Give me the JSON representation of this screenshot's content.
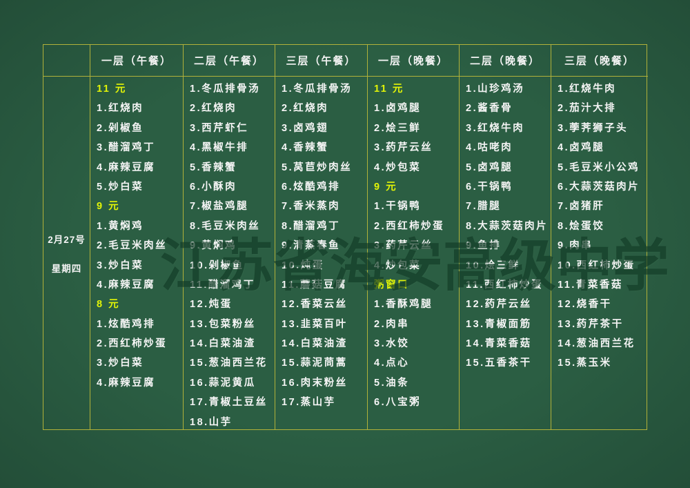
{
  "watermark": "江苏省海安高级中学",
  "date": {
    "line1": "2月27号",
    "line2": "星期四"
  },
  "colors": {
    "background": "#2b5e43",
    "border": "#b2b23a",
    "item_text": "#f5f5f5",
    "highlight_text": "#e2f407",
    "watermark_text": "#0d3622"
  },
  "columns": [
    {
      "header": "一层（午餐）",
      "items": [
        {
          "text": "11 元",
          "highlight": true
        },
        {
          "text": "1.红烧肉"
        },
        {
          "text": "2.剁椒鱼"
        },
        {
          "text": "3.醋溜鸡丁"
        },
        {
          "text": "4.麻辣豆腐"
        },
        {
          "text": "5.炒白菜"
        },
        {
          "text": "9 元",
          "highlight": true
        },
        {
          "text": "1.黄焖鸡"
        },
        {
          "text": "2.毛豆米肉丝"
        },
        {
          "text": "3.炒白菜"
        },
        {
          "text": "4.麻辣豆腐"
        },
        {
          "text": "8 元",
          "highlight": true
        },
        {
          "text": "1.炫酷鸡排"
        },
        {
          "text": "2.西红柿炒蛋"
        },
        {
          "text": "3.炒白菜"
        },
        {
          "text": "4.麻辣豆腐"
        }
      ]
    },
    {
      "header": "二层（午餐）",
      "items": [
        {
          "text": "1.冬瓜排骨汤"
        },
        {
          "text": "2.红烧肉"
        },
        {
          "text": "3.西芹虾仁"
        },
        {
          "text": "4.黑椒牛排"
        },
        {
          "text": "5.香辣蟹"
        },
        {
          "text": "6.小酥肉"
        },
        {
          "text": "7.椒盐鸡腿"
        },
        {
          "text": "8.毛豆米肉丝"
        },
        {
          "text": "9.黄焖鸡"
        },
        {
          "text": "10.剁椒鱼"
        },
        {
          "text": "11.醋溜鸡丁"
        },
        {
          "text": "12.炖蛋"
        },
        {
          "text": "13.包菜粉丝"
        },
        {
          "text": "14.白菜油渣"
        },
        {
          "text": "15.葱油西兰花"
        },
        {
          "text": "16.蒜泥黄瓜"
        },
        {
          "text": "17.青椒土豆丝"
        },
        {
          "text": "18.山芋"
        }
      ]
    },
    {
      "header": "三层（午餐）",
      "items": [
        {
          "text": "1.冬瓜排骨汤"
        },
        {
          "text": "2.红烧肉"
        },
        {
          "text": "3.卤鸡翅"
        },
        {
          "text": "4.香辣蟹"
        },
        {
          "text": "5.莴苣炒肉丝"
        },
        {
          "text": "6.炫酷鸡排"
        },
        {
          "text": "7.香米蒸肉"
        },
        {
          "text": "8.醋溜鸡丁"
        },
        {
          "text": "9.清蒸春鱼"
        },
        {
          "text": "10.炖蛋"
        },
        {
          "text": "11.蘑菇豆腐"
        },
        {
          "text": "12.香菜云丝"
        },
        {
          "text": "13.韭菜百叶"
        },
        {
          "text": "14.白菜油渣"
        },
        {
          "text": "15.蒜泥茼蒿"
        },
        {
          "text": "16.肉末粉丝"
        },
        {
          "text": "17.蒸山芋"
        }
      ]
    },
    {
      "header": "一层（晚餐）",
      "items": [
        {
          "text": "11 元",
          "highlight": true
        },
        {
          "text": "1.卤鸡腿"
        },
        {
          "text": "2.烩三鲜"
        },
        {
          "text": "3.药芹云丝"
        },
        {
          "text": "4.炒包菜"
        },
        {
          "text": "9 元",
          "highlight": true
        },
        {
          "text": "1.干锅鸭"
        },
        {
          "text": "2.西红柿炒蛋"
        },
        {
          "text": "3.药芹云丝"
        },
        {
          "text": "4.炒包菜"
        },
        {
          "text": "粥窗口",
          "highlight": true
        },
        {
          "text": "1.香酥鸡腿"
        },
        {
          "text": "2.肉串"
        },
        {
          "text": "3.水饺"
        },
        {
          "text": "4.点心"
        },
        {
          "text": "5.油条"
        },
        {
          "text": "6.八宝粥"
        }
      ]
    },
    {
      "header": "二层（晚餐）",
      "items": [
        {
          "text": "1.山珍鸡汤"
        },
        {
          "text": "2.酱香骨"
        },
        {
          "text": "3.红烧牛肉"
        },
        {
          "text": "4.咕咾肉"
        },
        {
          "text": "5.卤鸡腿"
        },
        {
          "text": "6.干锅鸭"
        },
        {
          "text": "7.腊腿"
        },
        {
          "text": "8.大蒜茨菇肉片"
        },
        {
          "text": "9.鱼排"
        },
        {
          "text": "10.烩三鲜"
        },
        {
          "text": "11.西红柿炒蛋"
        },
        {
          "text": "12.药芹云丝"
        },
        {
          "text": "13.青椒面筋"
        },
        {
          "text": "14.青菜香菇"
        },
        {
          "text": "15.五香茶干"
        }
      ]
    },
    {
      "header": "三层（晚餐）",
      "items": [
        {
          "text": "1.红烧牛肉"
        },
        {
          "text": "2.茄汁大排"
        },
        {
          "text": "3.荸荠狮子头"
        },
        {
          "text": "4.卤鸡腿"
        },
        {
          "text": "5.毛豆米小公鸡"
        },
        {
          "text": "6.大蒜茨菇肉片"
        },
        {
          "text": "7.卤猪肝"
        },
        {
          "text": "8.烩蛋饺"
        },
        {
          "text": "9.肉串"
        },
        {
          "text": "10.西红柿炒蛋"
        },
        {
          "text": "11.青菜香菇"
        },
        {
          "text": "12.烧香干"
        },
        {
          "text": "13.药芹茶干"
        },
        {
          "text": "14.葱油西兰花"
        },
        {
          "text": "15.蒸玉米"
        }
      ]
    }
  ]
}
